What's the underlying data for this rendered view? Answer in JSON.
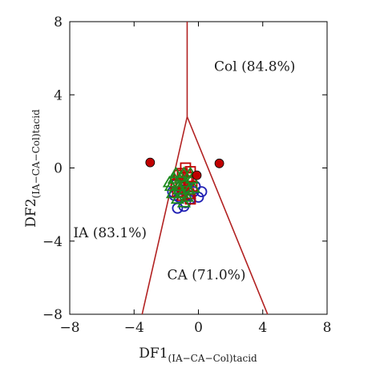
{
  "chart_data": {
    "type": "scatter",
    "title": "",
    "xlabel": "DF1",
    "xlabel_sub": "(IA−CA−Col)tacid",
    "ylabel": "DF2",
    "ylabel_sub": "(IA−CA−Col)tacid",
    "xlim": [
      -8,
      8
    ],
    "ylim": [
      -8,
      8
    ],
    "xticks": [
      -8,
      -4,
      0,
      4,
      8
    ],
    "xtick_labels": [
      "−8",
      "−4",
      "0",
      "4",
      "8"
    ],
    "yticks": [
      -8,
      -4,
      0,
      4,
      8
    ],
    "ytick_labels": [
      "−8",
      "−4",
      "0",
      "4",
      "8"
    ],
    "grid": false,
    "boundaries": [
      {
        "name": "",
        "points": [
          [
            -0.7,
            8
          ],
          [
            -0.7,
            2.8
          ]
        ]
      },
      {
        "name": "",
        "points": [
          [
            -0.7,
            2.8
          ],
          [
            -3.5,
            -8
          ]
        ]
      },
      {
        "name": "",
        "points": [
          [
            -0.7,
            2.8
          ],
          [
            4.3,
            -8
          ]
        ]
      }
    ],
    "boundary_color": "#b22222",
    "regions": [
      {
        "label": "Col (84.8%)",
        "x": 3.5,
        "y": 5.3
      },
      {
        "label": "IA (83.1%)",
        "x": -5.5,
        "y": -3.8
      },
      {
        "label": "CA (71.0%)",
        "x": 0.5,
        "y": -6.1
      }
    ],
    "centroids": {
      "color": "#c00000",
      "points": [
        [
          -3.0,
          0.3
        ],
        [
          -0.1,
          -0.4
        ],
        [
          1.3,
          0.25
        ]
      ]
    },
    "series": [
      {
        "marker": "circle",
        "color": "#1f1fb4",
        "points": [
          [
            -0.3,
            -1.3
          ],
          [
            0.2,
            -1.3
          ],
          [
            -1.2,
            -1.6
          ],
          [
            -0.5,
            -1.7
          ],
          [
            -1.5,
            -1.5
          ],
          [
            -1.0,
            -1.2
          ],
          [
            -0.8,
            -1.9
          ],
          [
            -1.3,
            -2.2
          ],
          [
            -0.2,
            -1.0
          ],
          [
            -1.6,
            -1.3
          ],
          [
            -0.6,
            -1.5
          ],
          [
            -1.1,
            -1.0
          ],
          [
            -0.9,
            -2.1
          ],
          [
            0.0,
            -1.6
          ],
          [
            -1.4,
            -0.9
          ]
        ]
      },
      {
        "marker": "square",
        "color": "#c00000",
        "points": [
          [
            -1.2,
            -0.4
          ],
          [
            -0.8,
            0.0
          ],
          [
            -0.5,
            -0.2
          ],
          [
            -1.4,
            -0.9
          ],
          [
            -0.9,
            -1.1
          ],
          [
            -0.6,
            -0.7
          ],
          [
            -1.0,
            -0.3
          ],
          [
            -1.3,
            -1.3
          ],
          [
            -0.7,
            -0.5
          ],
          [
            -1.1,
            -0.8
          ],
          [
            -0.4,
            -1.0
          ],
          [
            -0.6,
            -1.4
          ],
          [
            -1.0,
            -1.5
          ],
          [
            -0.5,
            -1.7
          ]
        ]
      },
      {
        "marker": "triangle",
        "color": "#1e8a1e",
        "points": [
          [
            -1.5,
            -0.6
          ],
          [
            -0.9,
            -0.3
          ],
          [
            -1.2,
            -1.0
          ],
          [
            -0.6,
            -1.2
          ],
          [
            -1.6,
            -1.4
          ],
          [
            -0.8,
            -0.8
          ],
          [
            -1.3,
            -1.7
          ],
          [
            -0.4,
            -0.6
          ],
          [
            -1.0,
            -1.4
          ],
          [
            -1.7,
            -1.0
          ],
          [
            -0.7,
            -1.6
          ],
          [
            -1.1,
            -0.5
          ],
          [
            -0.3,
            -1.1
          ],
          [
            -1.4,
            -0.3
          ],
          [
            -0.9,
            -1.9
          ],
          [
            -0.5,
            -0.3
          ],
          [
            -1.2,
            -1.2
          ],
          [
            -1.8,
            -0.8
          ]
        ]
      }
    ]
  }
}
